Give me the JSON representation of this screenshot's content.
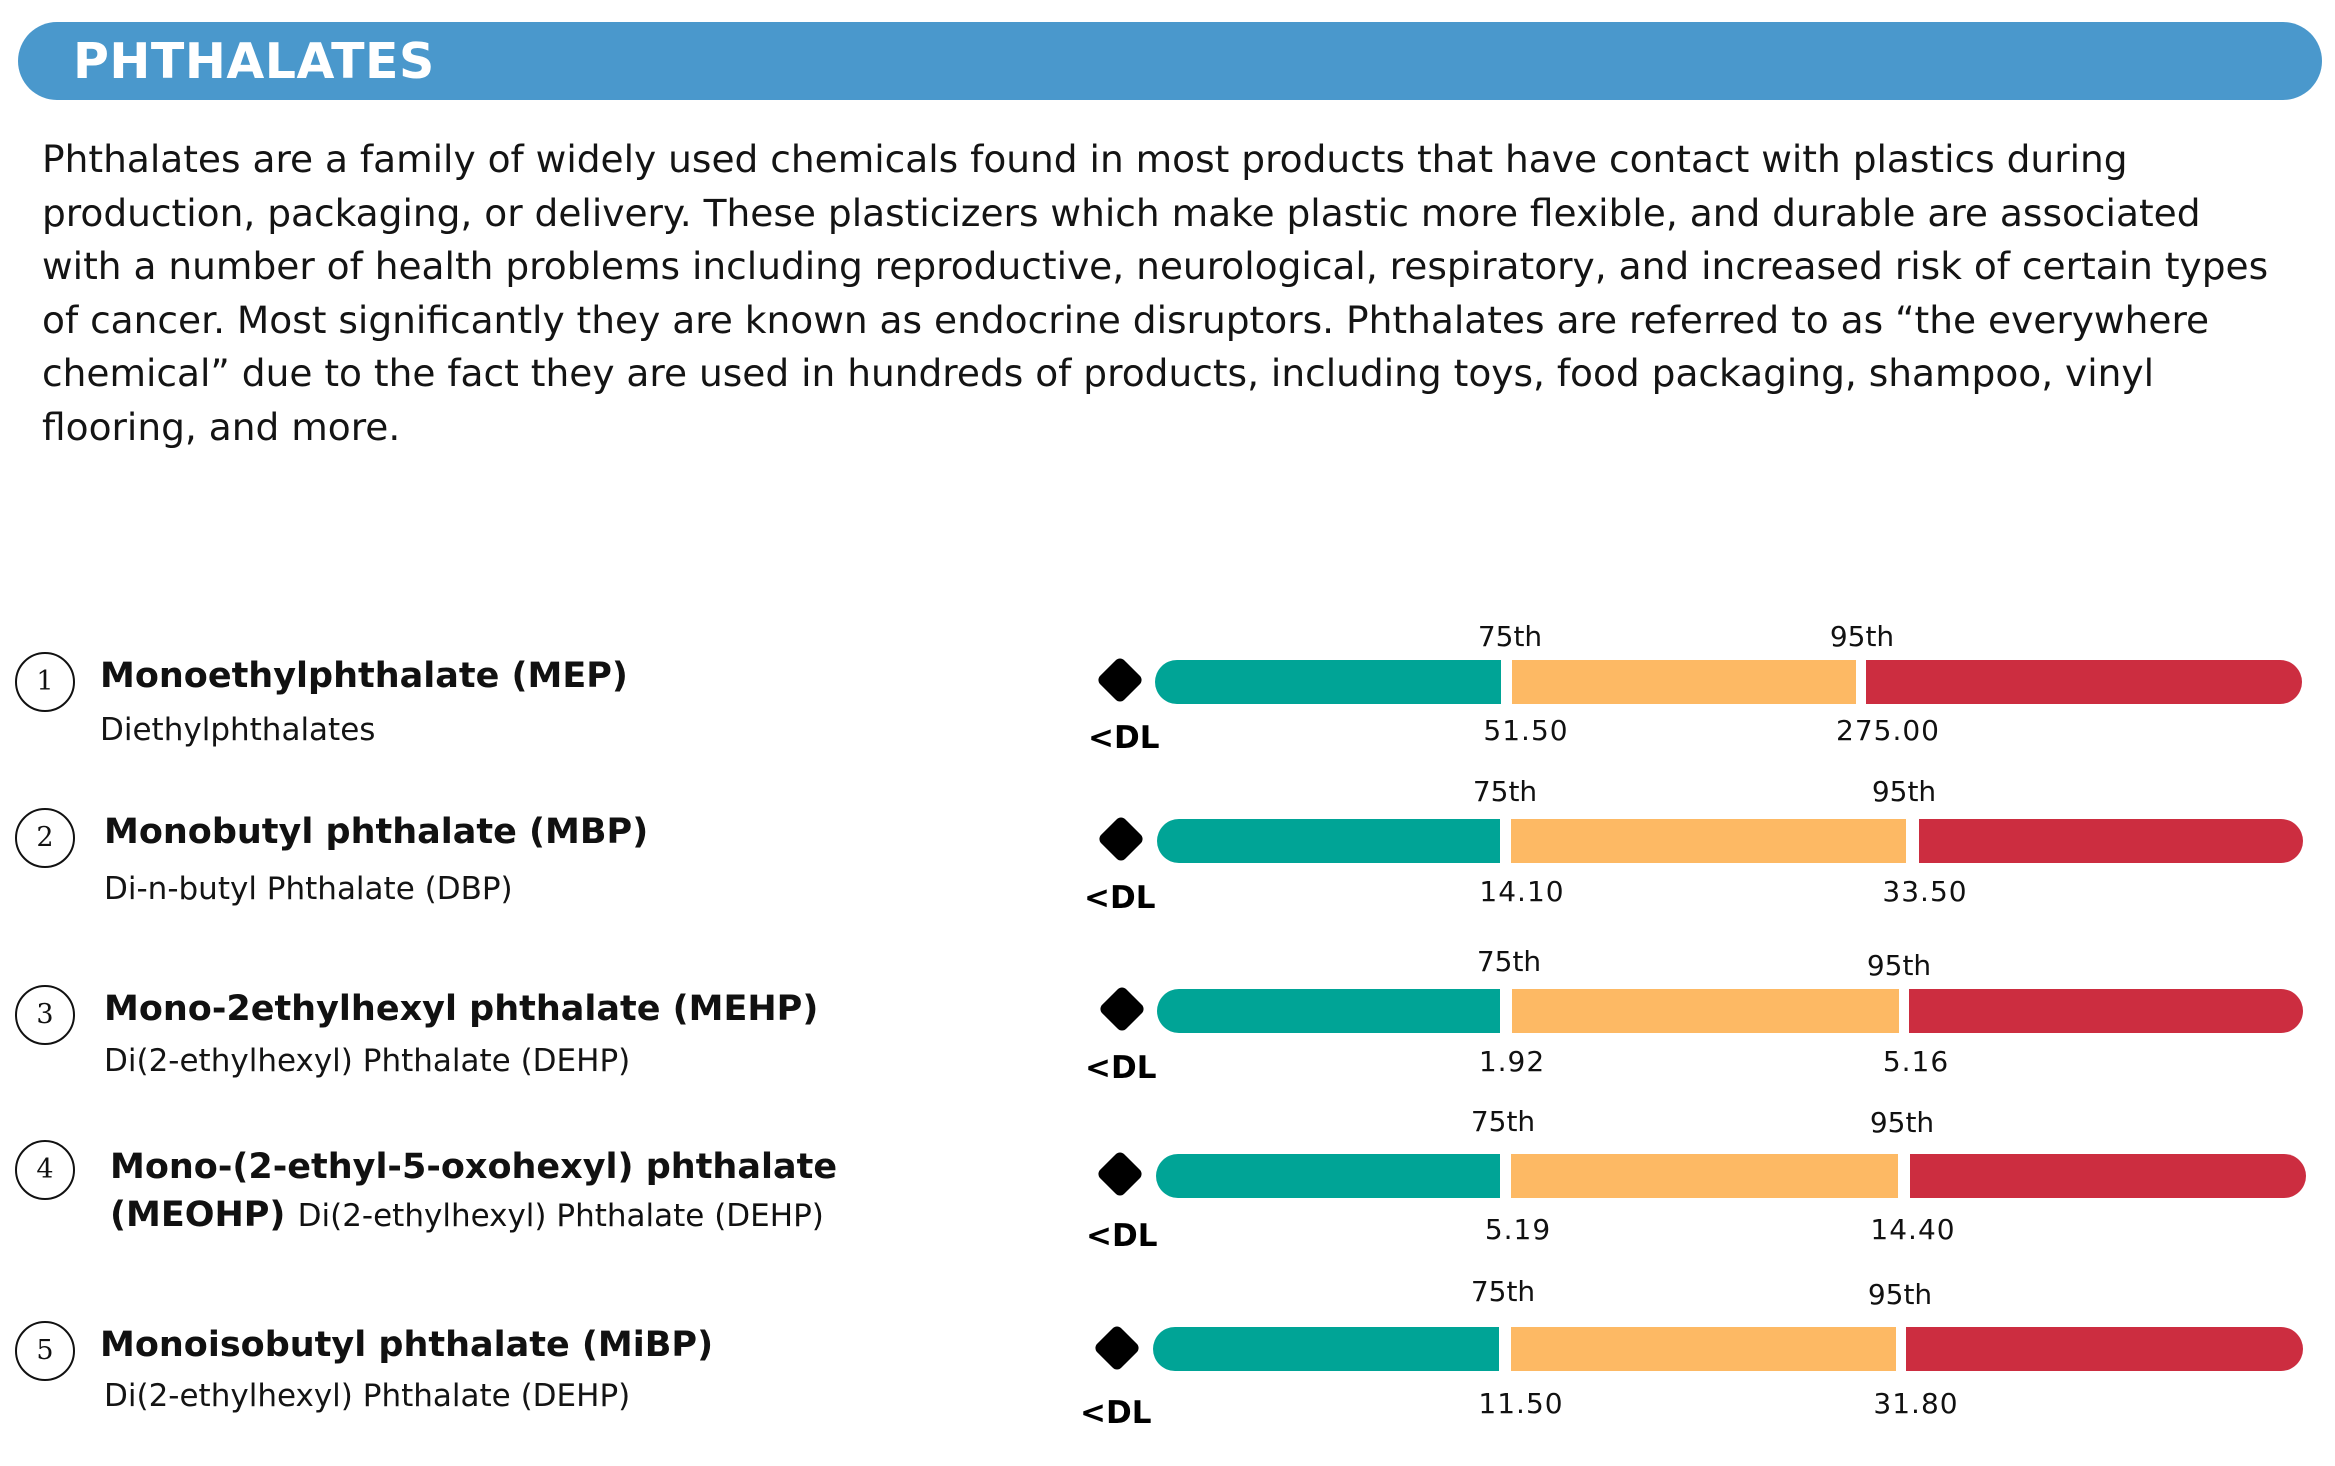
{
  "header": {
    "title": "PHTHALATES"
  },
  "intro": "Phthalates are a family of widely used chemicals found in most products that have contact with plastics during production, packaging, or delivery. These plasticizers which make plastic more flexible, and durable are associated with a number of health problems including reproductive, neurological, respiratory, and increased risk of certain types of cancer. Most significantly they are known as endocrine disruptors. Phthalates are referred to as “the everywhere chemical” due to the fact they are used in hundreds of products, including toys, food packaging, shampoo, vinyl flooring, and more.",
  "colors": {
    "banner": "#4a98cc",
    "low": "#00a496",
    "mid": "#fdb964",
    "high": "#cc2d40",
    "marker": "#000000"
  },
  "chart_data": {
    "type": "table",
    "detection_label": "<DL",
    "percentile_labels": {
      "p75": "75th",
      "p95": "95th"
    },
    "items": [
      {
        "number": "1",
        "name": "Monoethylphthalate (MEP)",
        "parent": "Diethylphthalates",
        "p75": "51.50",
        "p95": "275.00"
      },
      {
        "number": "2",
        "name": "Monobutyl phthalate (MBP)",
        "parent": "Di-n-butyl Phthalate (DBP)",
        "p75": "14.10",
        "p95": "33.50"
      },
      {
        "number": "3",
        "name": "Mono-2ethylhexyl phthalate (MEHP)",
        "parent": "Di(2-ethylhexyl) Phthalate (DEHP)",
        "p75": "1.92",
        "p95": "5.16"
      },
      {
        "number": "4",
        "name": "Mono-(2-ethyl-5-oxohexyl) phthalate (MEOHP)",
        "parent": "Di(2-ethylhexyl) Phthalate (DEHP)",
        "p75": "5.19",
        "p95": "14.40"
      },
      {
        "number": "5",
        "name": "Monoisobutyl phthalate (MiBP)",
        "parent": "Di(2-ethylhexyl) Phthalate (DEHP)",
        "p75": "11.50",
        "p95": "31.80"
      }
    ]
  }
}
